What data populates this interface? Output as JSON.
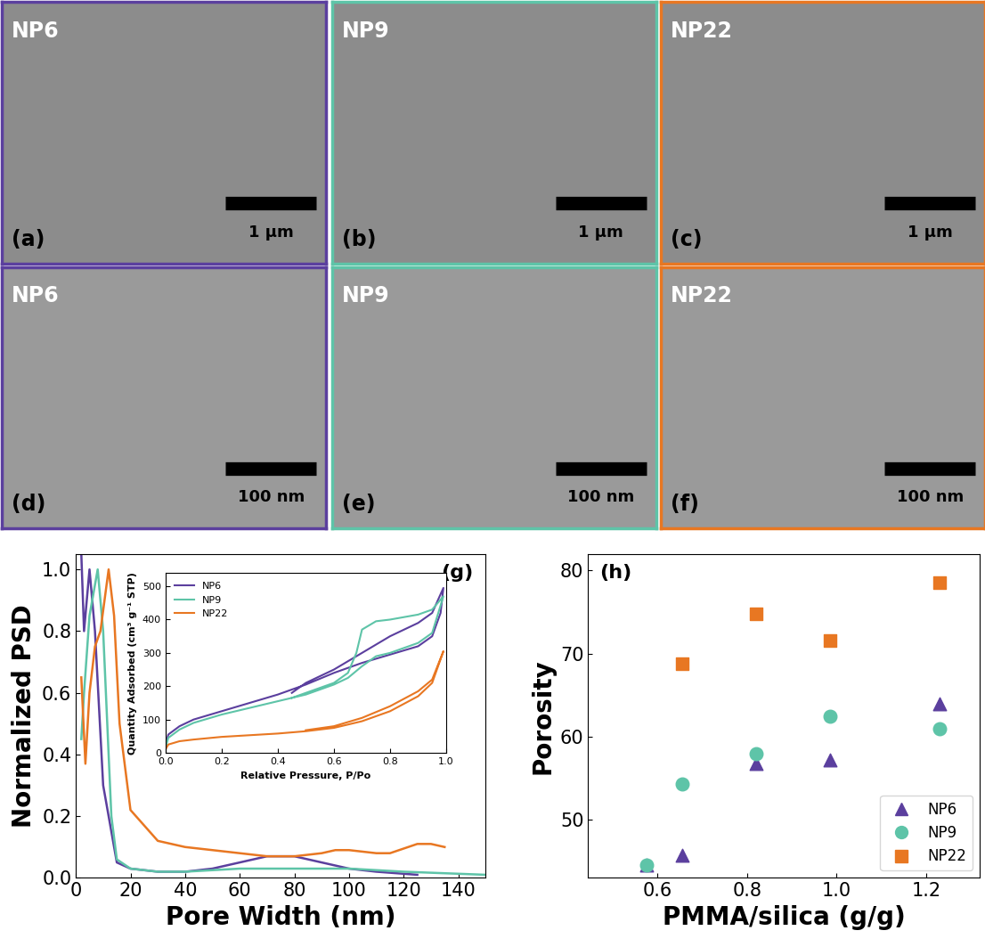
{
  "images": [
    {
      "label": "NP6",
      "panel": "(a)",
      "scale_bar": "1 µm",
      "color": "#5b3f9e"
    },
    {
      "label": "NP9",
      "panel": "(b)",
      "scale_bar": "1 µm",
      "color": "#5ec4a8"
    },
    {
      "label": "NP22",
      "panel": "(c)",
      "scale_bar": "1 µm",
      "color": "#e87722"
    },
    {
      "label": "NP6",
      "panel": "(d)",
      "scale_bar": "100 nm",
      "color": "#5b3f9e"
    },
    {
      "label": "NP9",
      "panel": "(e)",
      "scale_bar": "100 nm",
      "color": "#5ec4a8"
    },
    {
      "label": "NP22",
      "panel": "(f)",
      "scale_bar": "100 nm",
      "color": "#e87722"
    }
  ],
  "chart_data": [
    {
      "type": "line",
      "panel": "(g)",
      "x_label": "Pore Width (nm)",
      "y_label": "Normalized PSD",
      "xlim": [
        0,
        150
      ],
      "xticks": [
        0,
        20,
        40,
        60,
        80,
        100,
        120,
        140
      ],
      "ylim": [
        0,
        1.05
      ],
      "yticks": [
        0.0,
        0.2,
        0.4,
        0.6,
        0.8,
        1.0
      ],
      "series": [
        {
          "name": "NP6",
          "color": "#5b3f9e",
          "x": [
            2,
            3,
            5,
            7,
            10,
            15,
            20,
            30,
            40,
            50,
            60,
            70,
            80,
            90,
            100,
            110,
            125
          ],
          "values": [
            1.05,
            0.8,
            1.0,
            0.8,
            0.3,
            0.05,
            0.03,
            0.02,
            0.02,
            0.03,
            0.05,
            0.07,
            0.07,
            0.05,
            0.03,
            0.02,
            0.01
          ]
        },
        {
          "name": "NP9",
          "color": "#5ec4a8",
          "x": [
            2,
            3,
            5,
            8,
            10,
            13,
            15,
            20,
            30,
            40,
            60,
            80,
            100,
            120,
            150
          ],
          "values": [
            0.45,
            0.6,
            0.85,
            1.0,
            0.8,
            0.2,
            0.06,
            0.03,
            0.02,
            0.02,
            0.03,
            0.03,
            0.03,
            0.02,
            0.01
          ]
        },
        {
          "name": "NP22",
          "color": "#e87722",
          "x": [
            2,
            3.5,
            5,
            7,
            9,
            12,
            14,
            16,
            20,
            30,
            40,
            50,
            60,
            70,
            80,
            90,
            95,
            100,
            110,
            115,
            125,
            130,
            135
          ],
          "values": [
            0.65,
            0.37,
            0.6,
            0.75,
            0.8,
            1.0,
            0.85,
            0.5,
            0.22,
            0.12,
            0.1,
            0.09,
            0.08,
            0.07,
            0.07,
            0.08,
            0.09,
            0.09,
            0.08,
            0.08,
            0.11,
            0.11,
            0.1
          ]
        }
      ],
      "inset": {
        "type": "line",
        "x_label": "Relative Pressure, P/Po",
        "y_label": "Quantity Adsorbed (cm³ g⁻¹ STP)",
        "xlim": [
          0,
          1
        ],
        "xticks": [
          0.0,
          0.2,
          0.4,
          0.6,
          0.8,
          1.0
        ],
        "ylim": [
          0,
          540
        ],
        "yticks": [
          0,
          100,
          200,
          300,
          400,
          500
        ],
        "legend": "upper left",
        "series": [
          {
            "name": "NP6",
            "color": "#5b3f9e",
            "x": [
              0,
              0.01,
              0.05,
              0.1,
              0.2,
              0.3,
              0.4,
              0.5,
              0.6,
              0.7,
              0.8,
              0.9,
              0.95,
              0.98,
              0.99,
              0.95,
              0.9,
              0.8,
              0.7,
              0.6,
              0.5,
              0.45
            ],
            "values": [
              20,
              55,
              80,
              100,
              125,
              150,
              175,
              205,
              240,
              270,
              295,
              320,
              350,
              420,
              495,
              420,
              390,
              350,
              300,
              250,
              210,
              180
            ]
          },
          {
            "name": "NP9",
            "color": "#5ec4a8",
            "x": [
              0,
              0.01,
              0.05,
              0.1,
              0.2,
              0.3,
              0.4,
              0.5,
              0.6,
              0.65,
              0.7,
              0.75,
              0.8,
              0.9,
              0.95,
              0.99,
              0.95,
              0.9,
              0.8,
              0.75,
              0.7,
              0.68,
              0.65,
              0.6,
              0.5,
              0.45
            ],
            "values": [
              15,
              45,
              70,
              90,
              115,
              135,
              155,
              175,
              205,
              225,
              260,
              290,
              300,
              330,
              360,
              470,
              430,
              415,
              400,
              395,
              370,
              300,
              240,
              210,
              180,
              165
            ]
          },
          {
            "name": "NP22",
            "color": "#e87722",
            "x": [
              0,
              0.01,
              0.05,
              0.1,
              0.2,
              0.3,
              0.4,
              0.5,
              0.6,
              0.7,
              0.8,
              0.9,
              0.95,
              0.99,
              0.95,
              0.9,
              0.8,
              0.7,
              0.6,
              0.5
            ],
            "values": [
              10,
              25,
              35,
              40,
              48,
              53,
              58,
              65,
              75,
              95,
              125,
              170,
              210,
              305,
              220,
              185,
              140,
              105,
              80,
              68
            ]
          }
        ]
      }
    },
    {
      "type": "scatter",
      "panel": "(h)",
      "x_label": "PMMA/silica (g/g)",
      "y_label": "Porosity",
      "x": [
        0.575,
        0.655,
        0.82,
        0.985,
        1.23
      ],
      "xlim": [
        0.445,
        1.32
      ],
      "xticks": [
        0.6,
        0.8,
        1.0,
        1.2
      ],
      "ylim": [
        43,
        82
      ],
      "yticks": [
        50,
        60,
        70,
        80
      ],
      "legend": "lower right",
      "series": [
        {
          "name": "NP6",
          "color": "#5b3f9e",
          "marker": "triangle",
          "values": [
            44.5,
            45.7,
            56.8,
            57.2,
            64.0
          ]
        },
        {
          "name": "NP9",
          "color": "#5ec4a8",
          "marker": "circle",
          "values": [
            44.5,
            54.3,
            58.0,
            62.5,
            61.0
          ]
        },
        {
          "name": "NP22",
          "color": "#e87722",
          "marker": "square",
          "values": [
            null,
            68.8,
            74.8,
            71.6,
            78.5
          ]
        }
      ]
    }
  ]
}
